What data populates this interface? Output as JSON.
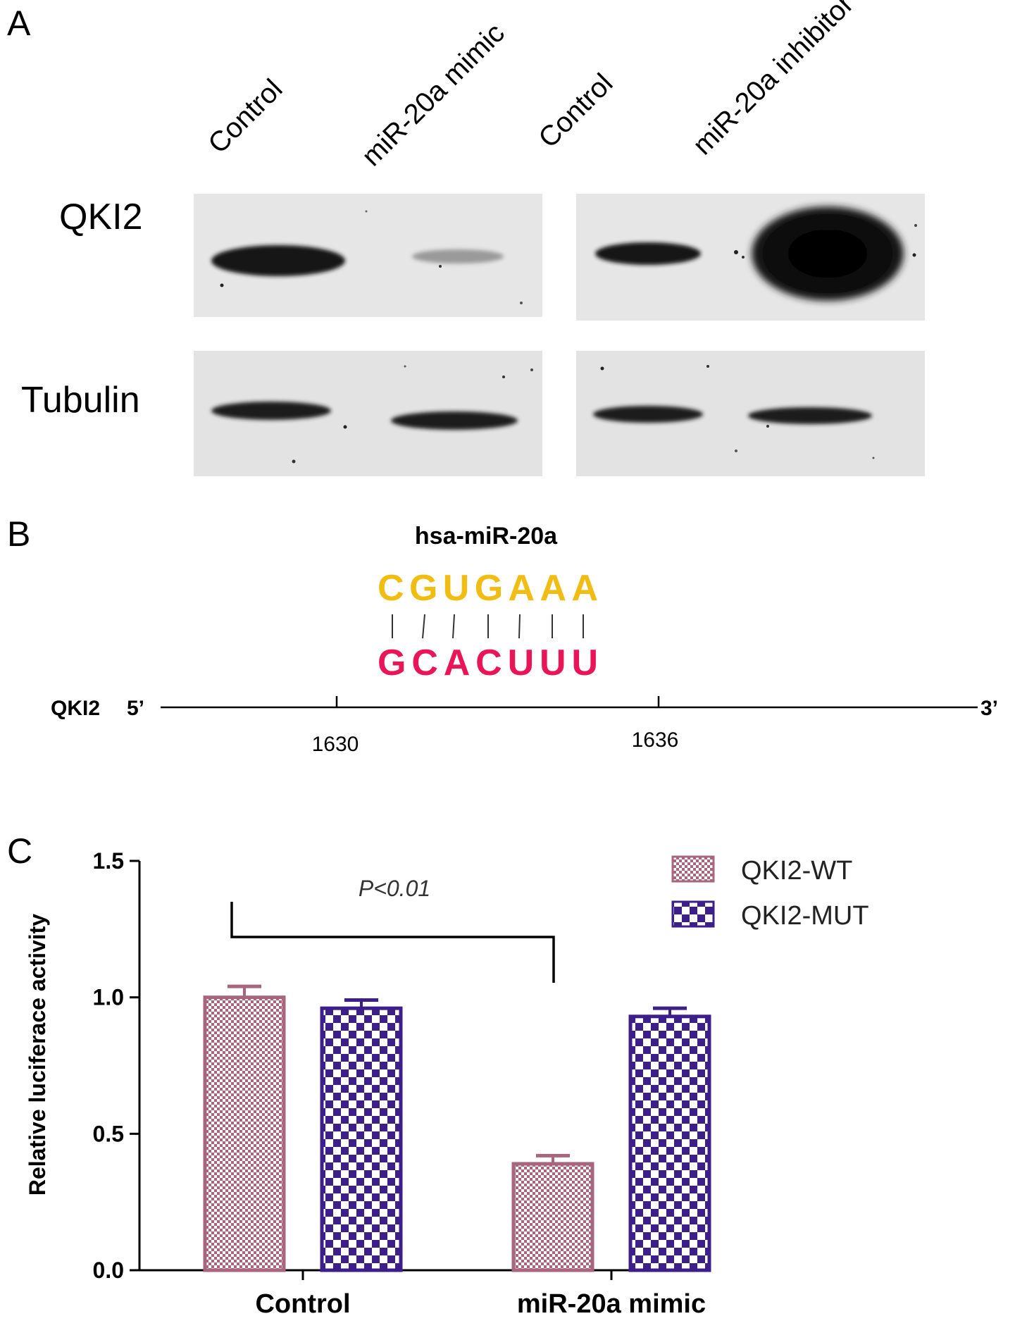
{
  "panel_a": {
    "letter": "A",
    "lanes": [
      "Control",
      "miR-20a mimic",
      "Control",
      "miR-20a inhibitor"
    ],
    "rows": [
      "QKI2",
      "Tubulin"
    ]
  },
  "panel_b": {
    "letter": "B",
    "mirna_name": "hsa-miR-20a",
    "mirna_seq": [
      "C",
      "G",
      "U",
      "G",
      "A",
      "A",
      "A"
    ],
    "target_seq": [
      "G",
      "C",
      "A",
      "C",
      "U",
      "U",
      "U"
    ],
    "gene_label": "QKI2",
    "five_prime": "5’",
    "three_prime": "3’",
    "positions": [
      "1630",
      "1636"
    ],
    "colors": {
      "mirna": "#f2bd12",
      "target": "#ea1557"
    }
  },
  "chart_data": {
    "type": "bar",
    "letter": "C",
    "categories": [
      "Control",
      "miR-20a mimic"
    ],
    "series": [
      {
        "name": "QKI2-WT",
        "values": [
          1.0,
          0.39
        ],
        "errors": [
          0.04,
          0.03
        ],
        "color": "#a8667e"
      },
      {
        "name": "QKI2-MUT",
        "values": [
          0.96,
          0.93
        ],
        "errors": [
          0.03,
          0.03
        ],
        "color": "#3d1f8a"
      }
    ],
    "ylabel": "Relative luciferace activity",
    "xlabel": "",
    "ylim": [
      0,
      1.5
    ],
    "yticks": [
      "0.0",
      "0.5",
      "1.0",
      "1.5"
    ],
    "annotation": "P<0.01",
    "legend_position": "top-right",
    "grid": false
  }
}
